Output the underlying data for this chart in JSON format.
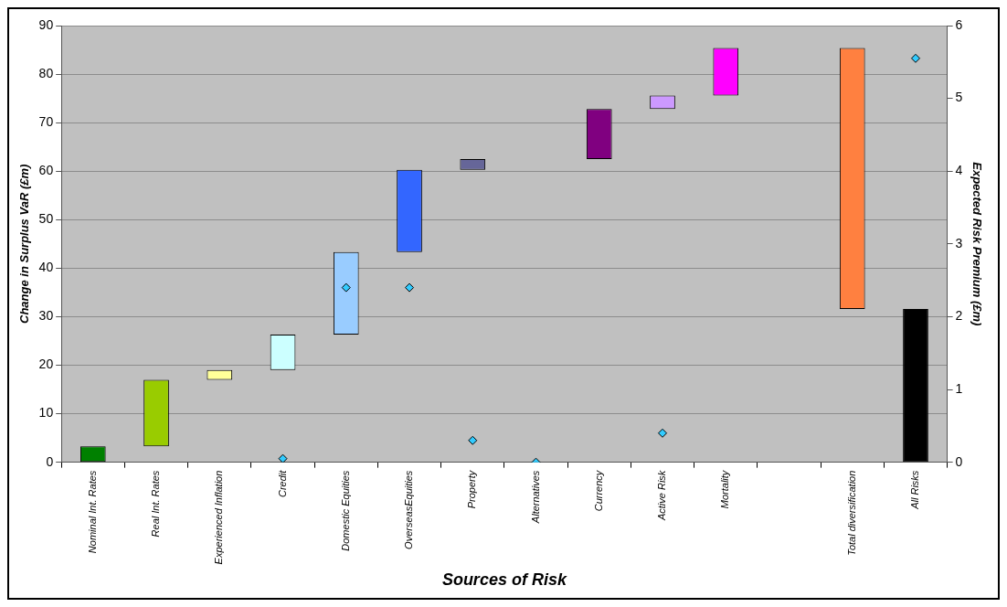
{
  "chart_data": {
    "type": "bar",
    "xlabel": "Sources of Risk",
    "ylabel": "Change in Surplus VaR (£m)",
    "y2label": "Expected Risk Premium (£m)",
    "categories": [
      "Nominal Int. Rates",
      "Real Int. Rates",
      "Experienced Inflation",
      "Credit",
      "Domestic Equities",
      "OverseasEquities",
      "Property",
      "Alternatives",
      "Currency",
      "Active Risk",
      "Mortality",
      null,
      "Total diversification",
      "All Risks"
    ],
    "series": [
      {
        "base": [
          0,
          3.3,
          17,
          19,
          26.3,
          43.3,
          60.3,
          null,
          62.5,
          72.8,
          75.6,
          null,
          31.6,
          0
        ],
        "values": [
          3.3,
          13.7,
          2,
          7.3,
          17,
          17,
          2.2,
          null,
          10.3,
          2.8,
          9.8,
          null,
          53.8,
          31.6
        ],
        "colors": [
          "#008000",
          "#99cc00",
          "#ffff99",
          "#ccffff",
          "#99ccff",
          "#3366ff",
          "#666699",
          "#c0c0c0",
          "#800080",
          "#cc99ff",
          "#ff00ff",
          "#c0c0c0",
          "#ff8040",
          "#000000"
        ]
      },
      {
        "type": "scatter",
        "axis": "y2",
        "color": "#33ccff",
        "values": [
          null,
          null,
          null,
          0.05,
          2.4,
          2.4,
          0.3,
          0,
          null,
          0.4,
          null,
          null,
          null,
          5.55
        ]
      }
    ],
    "ylim": [
      0,
      90
    ],
    "yticks": [
      0,
      10,
      20,
      30,
      40,
      50,
      60,
      70,
      80,
      90
    ],
    "y2lim": [
      0,
      6
    ],
    "y2ticks": [
      0,
      1,
      2,
      3,
      4,
      5,
      6
    ],
    "grid": "y",
    "legend": false,
    "marker": "diamond"
  }
}
